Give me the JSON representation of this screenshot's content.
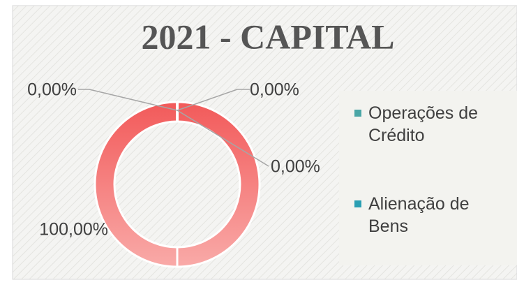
{
  "chart_data": {
    "type": "donut",
    "title": "2021 - CAPITAL",
    "categories": [
      "Operações de Crédito",
      "Alienação de Bens",
      null,
      null
    ],
    "values": [
      0,
      0,
      0,
      100
    ],
    "value_labels": [
      "0,00%",
      "0,00%",
      "0,00%",
      "100,00%"
    ],
    "colors": [
      "#4aa6a6",
      "#2a9fb3",
      "#8fb4c8",
      "#f26a6a"
    ],
    "legend": "right"
  }
}
